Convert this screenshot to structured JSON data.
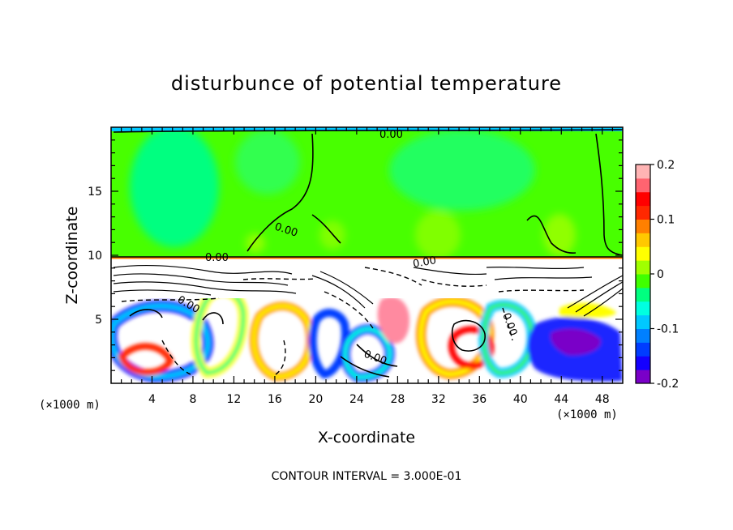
{
  "chart_data": {
    "type": "heatmap",
    "title": "disturbunce of potential temperature",
    "xlabel": "X-coordinate",
    "ylabel": "Z-coordinate",
    "x_unit_left": "(×1000 m)",
    "x_unit_right": "(×1000 m)",
    "xlim": [
      0,
      50
    ],
    "ylim": [
      0,
      20
    ],
    "x_ticks": [
      4,
      8,
      12,
      16,
      20,
      24,
      28,
      32,
      36,
      40,
      44,
      48
    ],
    "y_ticks": [
      5,
      10,
      15
    ],
    "colorbar": {
      "range": [
        -0.2,
        0.2
      ],
      "ticks": [
        -0.2,
        -0.1,
        0,
        0.1,
        0.2
      ],
      "tick_labels": [
        "-0.2",
        "-0.1",
        "0",
        "0.1",
        "0.2"
      ],
      "colors": [
        "#7a00c8",
        "#1400ff",
        "#003cff",
        "#0080ff",
        "#00c8ff",
        "#00ffe0",
        "#00ff80",
        "#40ff00",
        "#a0ff00",
        "#ffff00",
        "#ffc800",
        "#ff8000",
        "#ff2800",
        "#ff0000",
        "#ff6470",
        "#ffb4b4"
      ]
    },
    "contour_interval_text": "CONTOUR INTERVAL = 3.000E-01",
    "contour_labels": [
      "0.00",
      "0.00",
      "0.00",
      "0.00",
      "0.00",
      "0.00",
      "0.00"
    ],
    "upper_layer_value": 0.0
  }
}
